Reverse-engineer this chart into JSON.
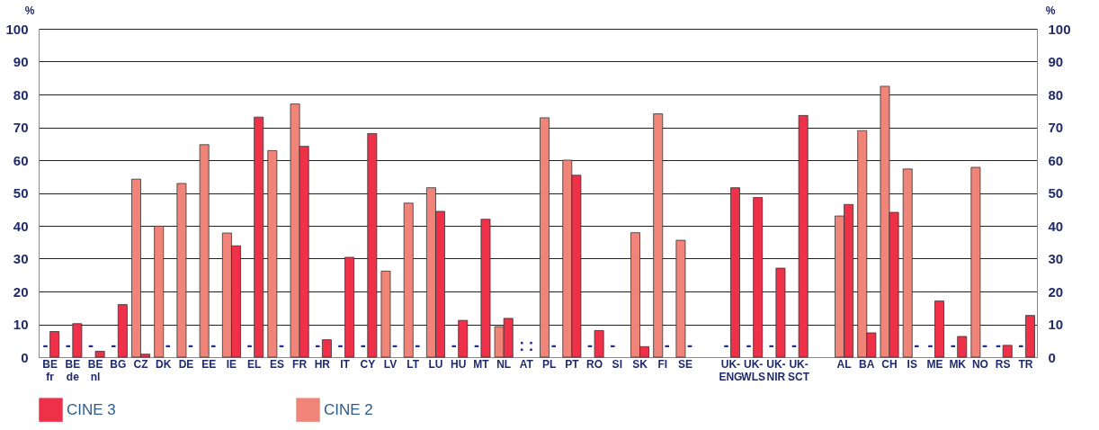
{
  "chart_data": {
    "type": "bar",
    "ylabel": "%",
    "y2label": "%",
    "categories": [
      "BE\nfr",
      "BE\nde",
      "BE\nnl",
      "BG",
      "CZ",
      "DK",
      "DE",
      "EE",
      "IE",
      "EL",
      "ES",
      "FR",
      "HR",
      "IT",
      "CY",
      "LV",
      "LT",
      "LU",
      "HU",
      "MT",
      "NL",
      "AT",
      "PL",
      "PT",
      "RO",
      "SI",
      "SK",
      "FI",
      "SE",
      null,
      "UK-\nENG",
      "UK-\nWLS",
      "UK-\nNIR",
      "UK-\nSCT",
      null,
      "AL",
      "BA",
      "CH",
      "IS",
      "ME",
      "MK",
      "NO",
      "RS",
      "TR"
    ],
    "series": [
      {
        "name": "CINE 2",
        "color": "#f08478",
        "values": [
          null,
          null,
          null,
          null,
          54.2,
          39.9,
          52.9,
          64.7,
          37.8,
          null,
          62.9,
          77.1,
          null,
          null,
          null,
          26.2,
          46.9,
          51.6,
          null,
          null,
          9.3,
          null,
          72.9,
          60.0,
          null,
          null,
          37.9,
          74.1,
          35.6,
          null,
          null,
          null,
          null,
          null,
          null,
          43.0,
          69.0,
          82.5,
          57.3,
          null,
          null,
          57.8,
          null,
          null
        ],
        "value_labels": [
          "-",
          "-",
          "-",
          "-",
          null,
          null,
          null,
          null,
          null,
          "-",
          null,
          null,
          "-",
          "-",
          "-",
          null,
          null,
          null,
          "-",
          "-",
          null,
          ":",
          null,
          null,
          "-",
          "-",
          null,
          null,
          null,
          null,
          "-",
          "-",
          "-",
          "-",
          null,
          null,
          null,
          null,
          null,
          "-",
          "-",
          null,
          "-",
          "-"
        ]
      },
      {
        "name": "CINE 3",
        "color": "#ee3049",
        "values": [
          7.8,
          10.2,
          1.8,
          16,
          0.9,
          null,
          null,
          null,
          33.9,
          73.1,
          null,
          64.2,
          5.3,
          30.4,
          68.1,
          null,
          null,
          44.4,
          11.2,
          42.0,
          11.8,
          null,
          null,
          55.4,
          8.1,
          null,
          3.2,
          null,
          null,
          null,
          51.6,
          48.6,
          27.1,
          73.6,
          null,
          46.5,
          7.4,
          44.1,
          null,
          17.1,
          6.3,
          null,
          3.6,
          12.7
        ],
        "value_labels": [
          null,
          null,
          null,
          null,
          null,
          "-",
          "-",
          "-",
          null,
          null,
          "-",
          null,
          null,
          null,
          null,
          "-",
          "-",
          null,
          null,
          null,
          null,
          ":",
          "-",
          null,
          null,
          null,
          null,
          "-",
          "-",
          null,
          null,
          null,
          null,
          null,
          null,
          null,
          null,
          null,
          "-",
          null,
          null,
          "-",
          null,
          null
        ]
      }
    ],
    "ylim": [
      0,
      100
    ],
    "yticks": [
      0,
      10,
      20,
      30,
      40,
      50,
      60,
      70,
      80,
      90,
      100
    ],
    "y2lim": [
      0,
      100
    ],
    "y2ticks": [
      0,
      10,
      20,
      30,
      40,
      50,
      60,
      70,
      80,
      90,
      100
    ],
    "grid": "y",
    "legend": "bottom"
  }
}
